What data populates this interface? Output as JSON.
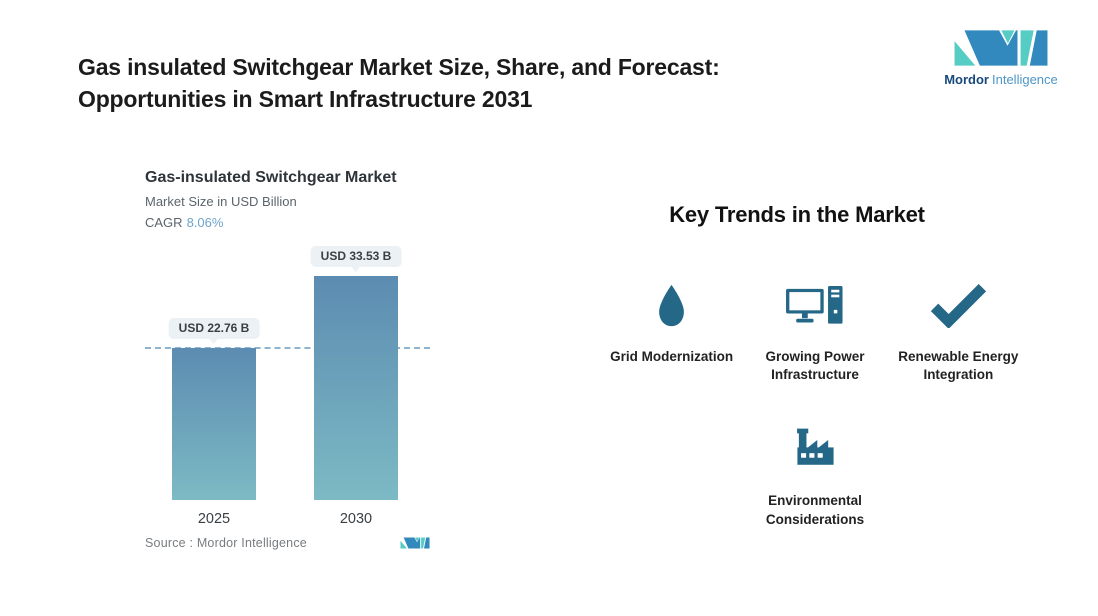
{
  "title": {
    "line1": "Gas insulated Switchgear Market Size, Share, and Forecast:",
    "line2": "Opportunities in Smart Infrastructure 2031"
  },
  "brand": {
    "name_bold": "Mordor",
    "name_light": "Intelligence",
    "teal": "#55CDC4",
    "blue": "#3189BE"
  },
  "chart": {
    "title": "Gas-insulated Switchgear Market",
    "subtitle": "Market Size in USD Billion",
    "cagr_label": "CAGR",
    "cagr_value": "8.06%",
    "source_label": "Source :  Mordor Intelligence"
  },
  "chart_data": {
    "type": "bar",
    "title": "Gas-insulated Switchgear Market",
    "subtitle": "Market Size in USD Billion",
    "cagr": "8.06%",
    "categories": [
      "2025",
      "2030"
    ],
    "values": [
      22.76,
      33.53
    ],
    "value_labels": [
      "USD 22.76 B",
      "USD 33.53 B"
    ],
    "ylabel": "Market Size in USD Billion",
    "ylim": [
      0,
      38
    ],
    "grid": false,
    "reference_line": 22.76,
    "reference_line_style": "dashed",
    "reference_line_color": "#8FB4D0",
    "bar_gradient_top": "#5C8CB1",
    "bar_gradient_bottom": "#7CBAC4"
  },
  "trends": {
    "heading": "Key Trends in the Market",
    "icon_color": "#256787",
    "items": [
      {
        "icon": "water-drop-icon",
        "label": "Grid Modernization"
      },
      {
        "icon": "computer-icon",
        "label": "Growing Power Infrastructure"
      },
      {
        "icon": "checkmark-icon",
        "label": "Renewable Energy Integration"
      },
      {
        "icon": "factory-icon",
        "label": "Environmental Considerations"
      }
    ]
  }
}
